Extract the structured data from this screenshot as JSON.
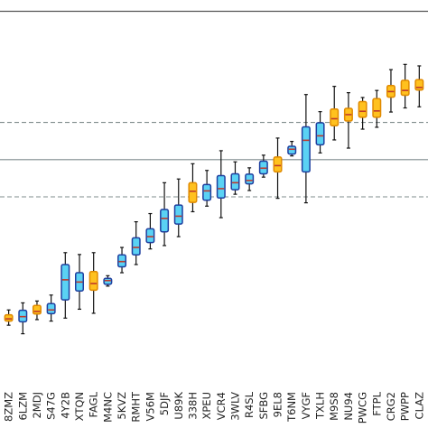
{
  "chart_data": {
    "type": "boxplot",
    "title": "",
    "xlabel": "",
    "ylabel": "",
    "ylim": [
      0,
      100
    ],
    "grid": false,
    "reference_lines": [
      {
        "value": 70,
        "style": "dashed"
      },
      {
        "value": 60,
        "style": "solid"
      },
      {
        "value": 50,
        "style": "dashed"
      }
    ],
    "colors": {
      "blue_fill": "#5ad2f4",
      "blue_edge": "#1f3f9f",
      "orange_fill": "#ffc11e",
      "orange_edge": "#e08a00",
      "median": "#c0392b",
      "whisker": "#111111",
      "ref_line": "#7f8c8d"
    },
    "categories": [
      "8ZMZ",
      "6LZM",
      "2MDJ",
      "S47G",
      "4Y2B",
      "XTQN",
      "FAGL",
      "M4NC",
      "5KVZ",
      "RMHT",
      "V56M",
      "5DJF",
      "U89K",
      "338H",
      "XPEU",
      "VCR4",
      "3WLV",
      "R4SL",
      "SFBG",
      "9EL8",
      "T6NM",
      "VYGF",
      "TXLH",
      "M9S8",
      "NU94",
      "PWCG",
      "FTPL",
      "CRG2",
      "PWPP",
      "CLAZ"
    ],
    "series": [
      {
        "highlight": "orange",
        "whislo": 15.5,
        "q1": 16.6,
        "median": 17.2,
        "q3": 18.3,
        "whishi": 19.6
      },
      {
        "highlight": "blue",
        "whislo": 13.2,
        "q1": 16.4,
        "median": 17.8,
        "q3": 19.5,
        "whishi": 21.5
      },
      {
        "highlight": "orange",
        "whislo": 17.0,
        "q1": 18.5,
        "median": 19.2,
        "q3": 20.8,
        "whishi": 22.0
      },
      {
        "highlight": "blue",
        "whislo": 16.6,
        "q1": 18.6,
        "median": 19.6,
        "q3": 21.3,
        "whishi": 23.6
      },
      {
        "highlight": "blue",
        "whislo": 17.4,
        "q1": 22.3,
        "median": 27.7,
        "q3": 31.8,
        "whishi": 35.0
      },
      {
        "highlight": "blue",
        "whislo": 19.8,
        "q1": 24.7,
        "median": 27.1,
        "q3": 29.6,
        "whishi": 34.5
      },
      {
        "highlight": "orange",
        "whislo": 18.7,
        "q1": 24.9,
        "median": 26.7,
        "q3": 29.9,
        "whishi": 35.0
      },
      {
        "highlight": "blue",
        "whislo": 26.0,
        "q1": 26.5,
        "median": 27.5,
        "q3": 28.1,
        "whishi": 28.8
      },
      {
        "highlight": "blue",
        "whislo": 29.6,
        "q1": 31.2,
        "median": 32.6,
        "q3": 34.4,
        "whishi": 36.4
      },
      {
        "highlight": "blue",
        "whislo": 31.8,
        "q1": 34.4,
        "median": 36.4,
        "q3": 39.0,
        "whishi": 43.3
      },
      {
        "highlight": "blue",
        "whislo": 36.0,
        "q1": 37.7,
        "median": 39.3,
        "q3": 41.4,
        "whishi": 45.5
      },
      {
        "highlight": "blue",
        "whislo": 36.9,
        "q1": 40.6,
        "median": 44.2,
        "q3": 46.6,
        "whishi": 53.8
      },
      {
        "highlight": "blue",
        "whislo": 39.3,
        "q1": 42.7,
        "median": 44.8,
        "q3": 47.8,
        "whishi": 54.8
      },
      {
        "highlight": "orange",
        "whislo": 46.0,
        "q1": 48.5,
        "median": 51.5,
        "q3": 53.8,
        "whishi": 58.9
      },
      {
        "highlight": "blue",
        "whislo": 47.5,
        "q1": 49.1,
        "median": 51.6,
        "q3": 53.3,
        "whishi": 57.1
      },
      {
        "highlight": "blue",
        "whislo": 44.4,
        "q1": 49.7,
        "median": 52.2,
        "q3": 55.7,
        "whishi": 62.4
      },
      {
        "highlight": "blue",
        "whislo": 50.7,
        "q1": 51.9,
        "median": 53.8,
        "q3": 56.2,
        "whishi": 59.4
      },
      {
        "highlight": "blue",
        "whislo": 51.7,
        "q1": 53.5,
        "median": 54.4,
        "q3": 56.1,
        "whishi": 57.8
      },
      {
        "highlight": "blue",
        "whislo": 55.3,
        "q1": 56.2,
        "median": 57.7,
        "q3": 59.6,
        "whishi": 61.2
      },
      {
        "highlight": "orange",
        "whislo": 49.6,
        "q1": 56.7,
        "median": 58.4,
        "q3": 60.7,
        "whishi": 65.8
      },
      {
        "highlight": "blue",
        "whislo": 61.0,
        "q1": 61.5,
        "median": 62.8,
        "q3": 63.6,
        "whishi": 64.9
      },
      {
        "highlight": "blue",
        "whislo": 48.4,
        "q1": 56.7,
        "median": 65.2,
        "q3": 68.8,
        "whishi": 77.5
      },
      {
        "highlight": "blue",
        "whislo": 61.8,
        "q1": 64.0,
        "median": 66.4,
        "q3": 69.9,
        "whishi": 72.9
      },
      {
        "highlight": "orange",
        "whislo": 65.3,
        "q1": 69.1,
        "median": 71.0,
        "q3": 73.6,
        "whishi": 79.7
      },
      {
        "highlight": "orange",
        "whislo": 63.1,
        "q1": 70.4,
        "median": 72.1,
        "q3": 73.8,
        "whishi": 78.0
      },
      {
        "highlight": "orange",
        "whislo": 68.2,
        "q1": 71.4,
        "median": 73.0,
        "q3": 75.6,
        "whishi": 76.7
      },
      {
        "highlight": "orange",
        "whislo": 68.7,
        "q1": 71.4,
        "median": 73.1,
        "q3": 76.4,
        "whishi": 78.6
      },
      {
        "highlight": "orange",
        "whislo": 72.8,
        "q1": 76.8,
        "median": 78.3,
        "q3": 79.9,
        "whishi": 84.2
      },
      {
        "highlight": "orange",
        "whislo": 73.9,
        "q1": 77.3,
        "median": 78.6,
        "q3": 81.3,
        "whishi": 85.6
      },
      {
        "highlight": "orange",
        "whislo": 74.2,
        "q1": 78.7,
        "median": 79.4,
        "q3": 81.5,
        "whishi": 85.2
      }
    ]
  }
}
